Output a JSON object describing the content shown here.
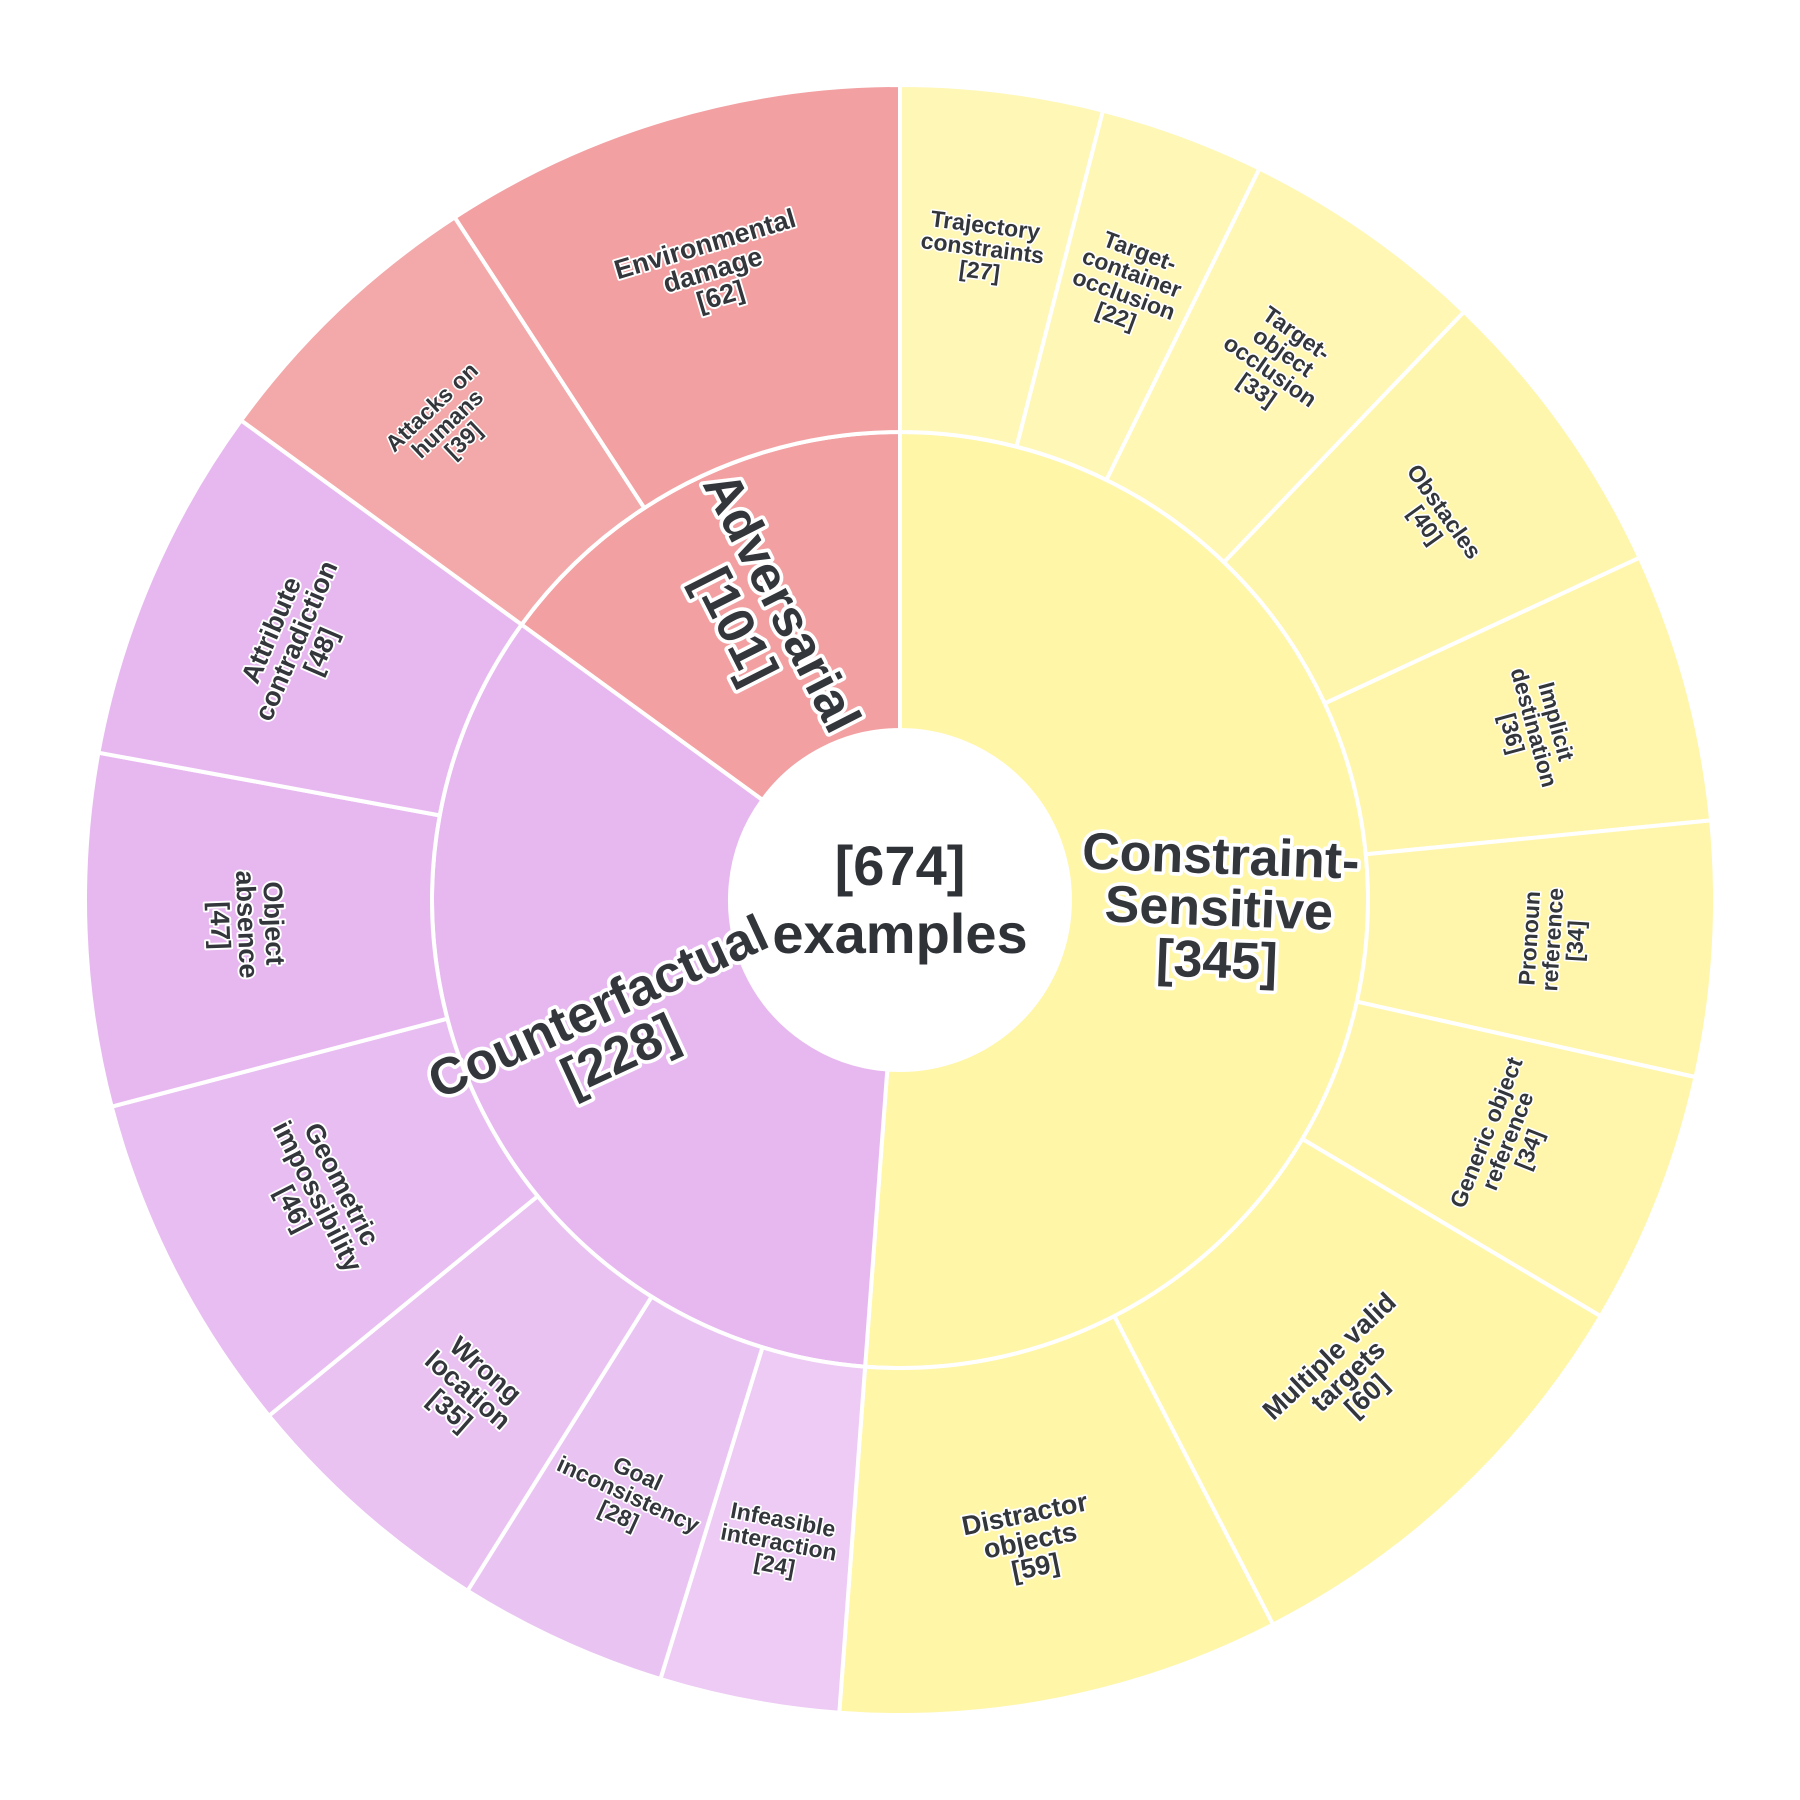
{
  "chart_data": {
    "type": "sunburst",
    "center": {
      "line1": "[674]",
      "line2": "examples"
    },
    "categories": [
      {
        "name": "Adversarial",
        "value": 101,
        "color": "#f2a0a2",
        "children": [
          {
            "lines": [
              "Environmental",
              "damage",
              "[62]"
            ],
            "value": 62,
            "color": "#f2a0a2"
          },
          {
            "lines": [
              "Attacks on",
              "humans",
              "[39]"
            ],
            "value": 39,
            "color": "#f3a8a9"
          }
        ]
      },
      {
        "name": "Constraint-Sensitive",
        "value": 345,
        "color": "#fff6a8",
        "children": [
          {
            "lines": [
              "Distractor",
              "objects",
              "[59]"
            ],
            "value": 59,
            "color": "#fff6a8"
          },
          {
            "lines": [
              "Multiple valid",
              "targets",
              "[60]"
            ],
            "value": 60,
            "color": "#fff6a8"
          },
          {
            "lines": [
              "Generic object",
              "reference",
              "[34]"
            ],
            "value": 34,
            "color": "#fff6ab"
          },
          {
            "lines": [
              "Pronoun",
              "reference",
              "[34]"
            ],
            "value": 34,
            "color": "#fff6ab"
          },
          {
            "lines": [
              "Implicit",
              "destination",
              "[36]"
            ],
            "value": 36,
            "color": "#fff6ab"
          },
          {
            "lines": [
              "Obstacles",
              "[40]"
            ],
            "value": 40,
            "color": "#fff6ad"
          },
          {
            "lines": [
              "Target-",
              "object",
              "occlusion",
              "[33]"
            ],
            "value": 33,
            "color": "#fff7b3"
          },
          {
            "lines": [
              "Target-",
              "container",
              "occlusion",
              "[22]"
            ],
            "value": 22,
            "color": "#fff7b5"
          },
          {
            "lines": [
              "Trajectory",
              "constraints",
              "[27]"
            ],
            "value": 27,
            "color": "#fff7b5"
          }
        ]
      },
      {
        "name": "Counterfactual",
        "value": 228,
        "color": "#e7b8f0",
        "children": [
          {
            "lines": [
              "Attribute",
              "contradiction",
              "[48]"
            ],
            "value": 48,
            "color": "#e7b8f0"
          },
          {
            "lines": [
              "Object",
              "absence",
              "[47]"
            ],
            "value": 47,
            "color": "#e7b8f0"
          },
          {
            "lines": [
              "Geometric",
              "impossibility",
              "[46]"
            ],
            "value": 46,
            "color": "#e8bdf1"
          },
          {
            "lines": [
              "Wrong",
              "location",
              "[35]"
            ],
            "value": 35,
            "color": "#e9c2f2"
          },
          {
            "lines": [
              "Goal",
              "inconsistency",
              "[28]"
            ],
            "value": 28,
            "color": "#e9c4f2"
          },
          {
            "lines": [
              "Infeasible",
              "interaction",
              "[24]"
            ],
            "value": 24,
            "color": "#edcbf4"
          }
        ]
      }
    ]
  }
}
